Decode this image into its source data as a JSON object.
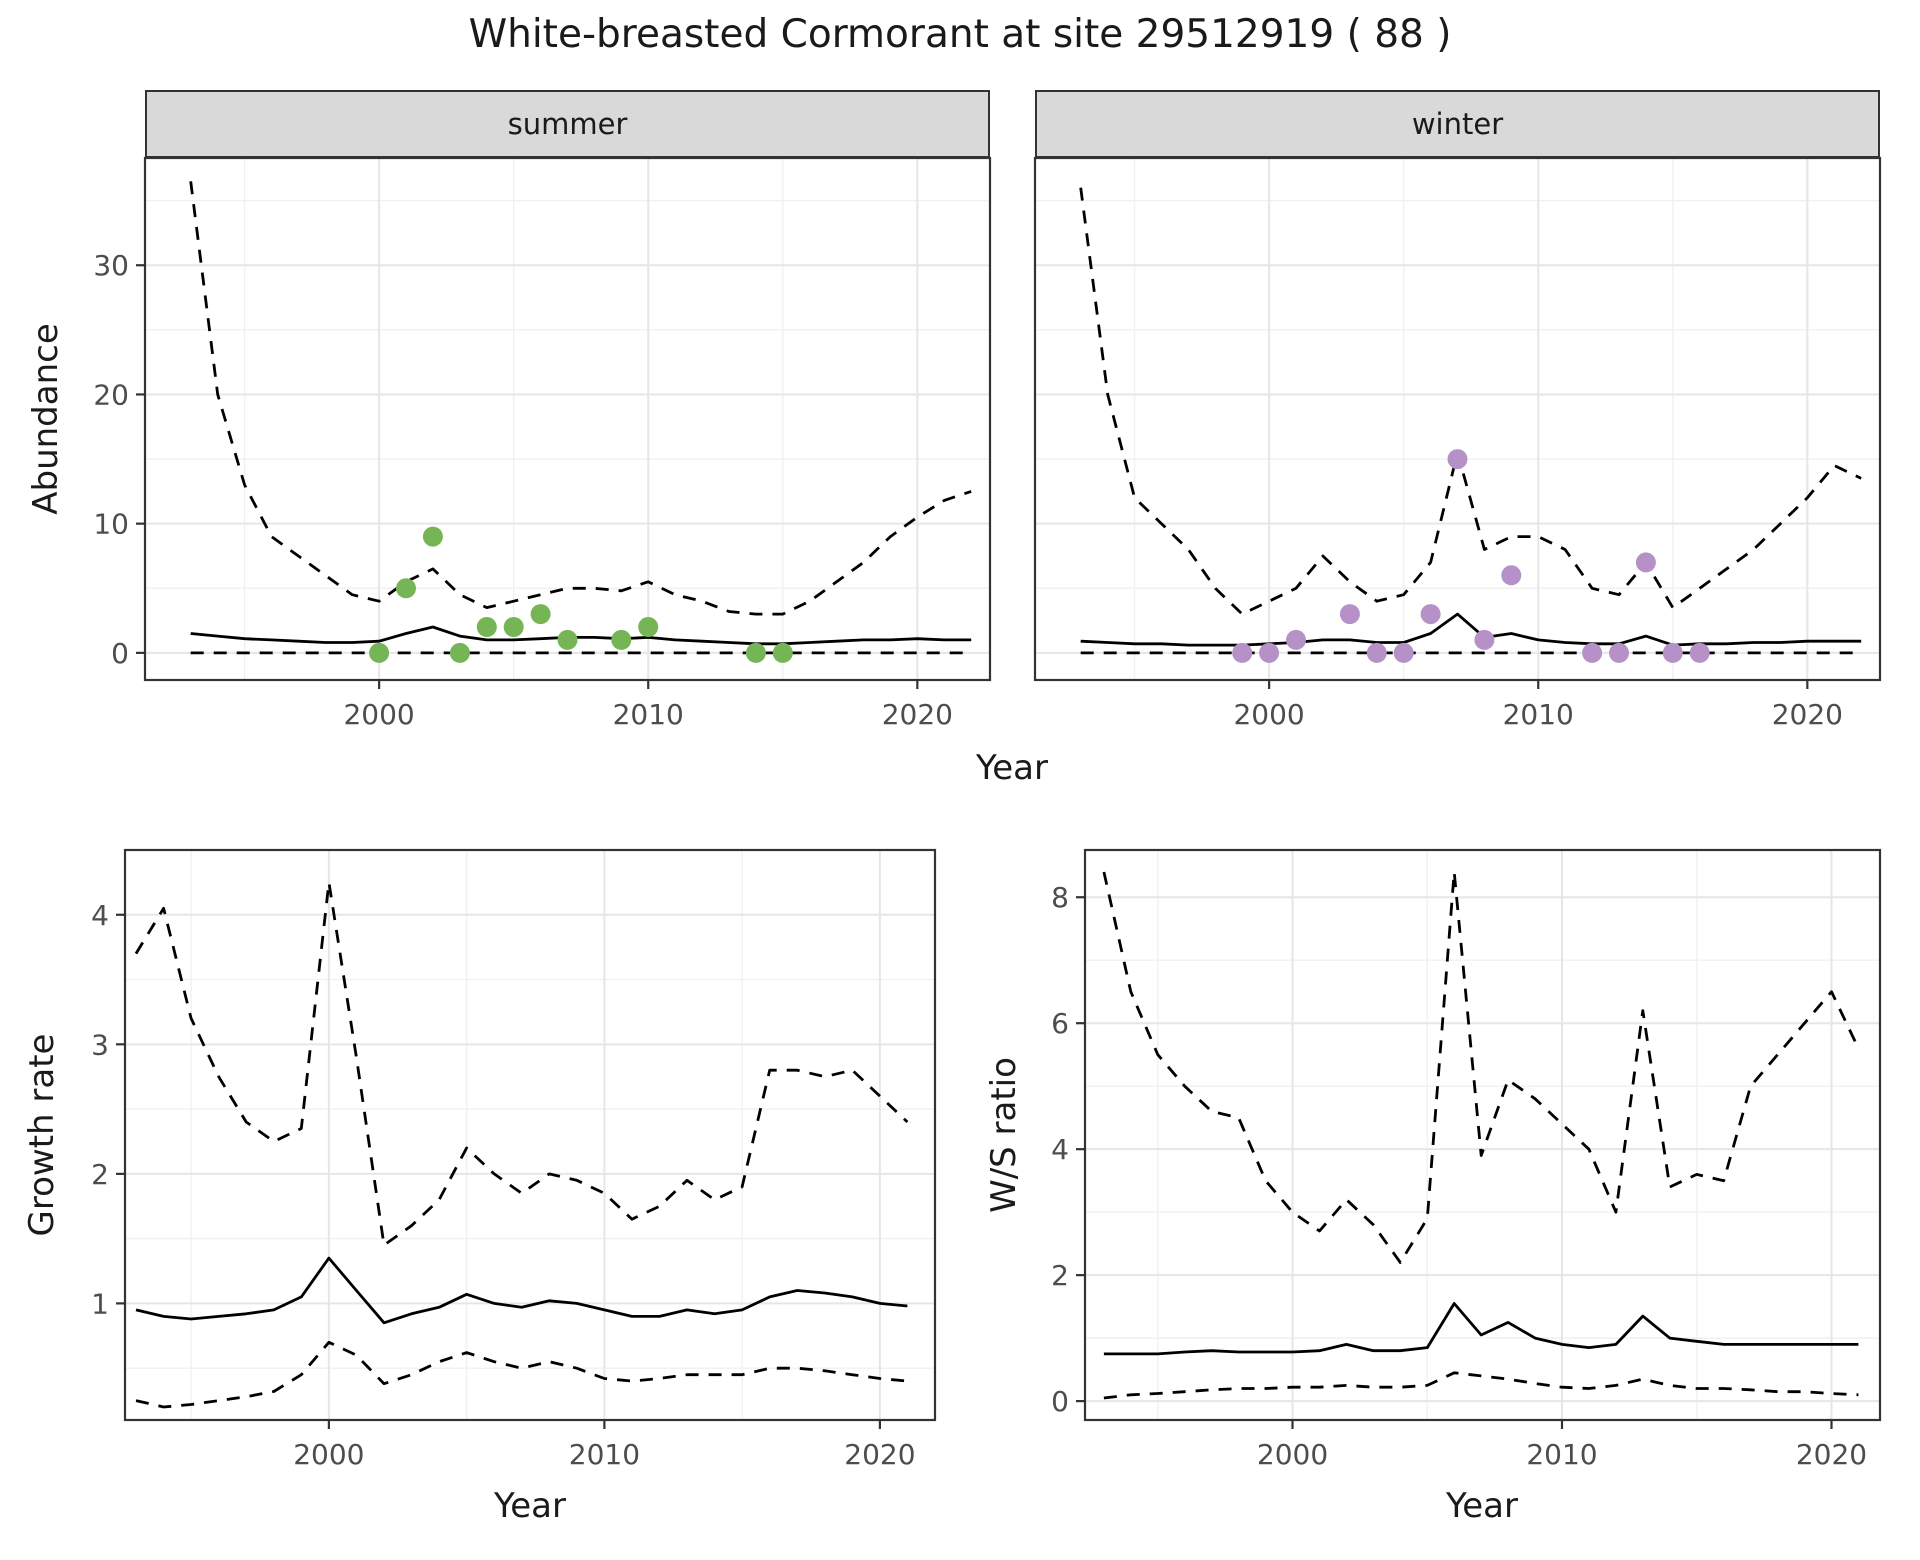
{
  "title": "White-breasted Cormorant at site 29512919 ( 88 )",
  "colors": {
    "summer_points": "#76b556",
    "winter_points": "#b691c8",
    "lines": "#000000",
    "strip_bg": "#d9d9d9",
    "panel_border": "#333333",
    "grid_major": "#e6e6e6",
    "grid_minor": "#f1f1f1",
    "tick_text": "#4d4d4d"
  },
  "chart_data": [
    {
      "id": "abundance-summer",
      "type": "line",
      "facet_label": "summer",
      "ylabel": "Abundance",
      "xlabel": "Year",
      "legend": "none",
      "grid": true,
      "xlim": [
        1991.3,
        2022.7
      ],
      "ylim": [
        -2.1,
        38.3
      ],
      "xticks": [
        2000,
        2010,
        2020
      ],
      "yticks": [
        0,
        10,
        20,
        30
      ],
      "x": [
        1993,
        1994,
        1995,
        1996,
        1997,
        1998,
        1999,
        2000,
        2001,
        2002,
        2003,
        2004,
        2005,
        2006,
        2007,
        2008,
        2009,
        2010,
        2011,
        2012,
        2013,
        2014,
        2015,
        2016,
        2017,
        2018,
        2019,
        2020,
        2021,
        2022
      ],
      "series": [
        {
          "name": "upper_ci",
          "style": "dashed",
          "values": [
            36.5,
            20,
            13,
            9,
            7.5,
            6,
            4.5,
            4,
            5.5,
            6.5,
            4.5,
            3.5,
            4,
            4.5,
            5,
            5,
            4.8,
            5.5,
            4.5,
            4,
            3.2,
            3,
            3,
            4,
            5.5,
            7,
            9,
            10.5,
            11.8,
            12.5
          ]
        },
        {
          "name": "median",
          "style": "solid",
          "values": [
            1.5,
            1.3,
            1.1,
            1.0,
            0.9,
            0.8,
            0.8,
            0.9,
            1.5,
            2.0,
            1.3,
            1.0,
            1.0,
            1.1,
            1.2,
            1.2,
            1.1,
            1.2,
            1.0,
            0.9,
            0.8,
            0.7,
            0.7,
            0.8,
            0.9,
            1.0,
            1.0,
            1.1,
            1.0,
            1.0
          ]
        },
        {
          "name": "lower_ci",
          "style": "dashed",
          "values": [
            0,
            0,
            0,
            0,
            0,
            0,
            0,
            0,
            0,
            0,
            0,
            0,
            0,
            0,
            0,
            0,
            0,
            0,
            0,
            0,
            0,
            0,
            0,
            0,
            0,
            0,
            0,
            0,
            0,
            0
          ]
        }
      ],
      "points": {
        "color": "#76b556",
        "xy": [
          [
            2000,
            0
          ],
          [
            2001,
            5
          ],
          [
            2002,
            9
          ],
          [
            2003,
            0
          ],
          [
            2004,
            2
          ],
          [
            2005,
            2
          ],
          [
            2006,
            3
          ],
          [
            2007,
            1
          ],
          [
            2009,
            1
          ],
          [
            2010,
            2
          ],
          [
            2014,
            0
          ],
          [
            2015,
            0
          ]
        ]
      }
    },
    {
      "id": "abundance-winter",
      "type": "line",
      "facet_label": "winter",
      "ylabel": "Abundance",
      "xlabel": "Year",
      "legend": "none",
      "grid": true,
      "xlim": [
        1991.3,
        2022.7
      ],
      "ylim": [
        -2.1,
        38.3
      ],
      "xticks": [
        2000,
        2010,
        2020
      ],
      "yticks": [
        0,
        10,
        20,
        30
      ],
      "x": [
        1993,
        1994,
        1995,
        1996,
        1997,
        1998,
        1999,
        2000,
        2001,
        2002,
        2003,
        2004,
        2005,
        2006,
        2007,
        2008,
        2009,
        2010,
        2011,
        2012,
        2013,
        2014,
        2015,
        2016,
        2017,
        2018,
        2019,
        2020,
        2021,
        2022
      ],
      "series": [
        {
          "name": "upper_ci",
          "style": "dashed",
          "values": [
            36,
            20,
            12,
            10,
            8,
            5,
            3,
            4,
            5,
            7.5,
            5.5,
            4,
            4.5,
            7,
            15.5,
            8,
            9,
            9,
            8,
            5,
            4.5,
            7,
            3.5,
            5,
            6.5,
            8,
            10,
            12,
            14.5,
            13.5
          ]
        },
        {
          "name": "median",
          "style": "solid",
          "values": [
            0.9,
            0.8,
            0.7,
            0.7,
            0.6,
            0.6,
            0.6,
            0.7,
            0.8,
            1.0,
            1.0,
            0.8,
            0.8,
            1.5,
            3.0,
            1.2,
            1.5,
            1.0,
            0.8,
            0.7,
            0.7,
            1.3,
            0.6,
            0.7,
            0.7,
            0.8,
            0.8,
            0.9,
            0.9,
            0.9
          ]
        },
        {
          "name": "lower_ci",
          "style": "dashed",
          "values": [
            0,
            0,
            0,
            0,
            0,
            0,
            0,
            0,
            0,
            0,
            0,
            0,
            0,
            0,
            0,
            0,
            0,
            0,
            0,
            0,
            0,
            0,
            0,
            0,
            0,
            0,
            0,
            0,
            0,
            0
          ]
        }
      ],
      "points": {
        "color": "#b691c8",
        "xy": [
          [
            1999,
            0
          ],
          [
            2000,
            0
          ],
          [
            2001,
            1
          ],
          [
            2003,
            3
          ],
          [
            2004,
            0
          ],
          [
            2005,
            0
          ],
          [
            2006,
            3
          ],
          [
            2007,
            15
          ],
          [
            2008,
            1
          ],
          [
            2009,
            6
          ],
          [
            2012,
            0
          ],
          [
            2013,
            0
          ],
          [
            2014,
            7
          ],
          [
            2015,
            0
          ],
          [
            2016,
            0
          ]
        ]
      }
    },
    {
      "id": "growth-rate",
      "type": "line",
      "facet_label": "",
      "ylabel": "Growth rate",
      "xlabel": "Year",
      "legend": "none",
      "grid": true,
      "xlim": [
        1992.6,
        2022.0
      ],
      "ylim": [
        0.1,
        4.5
      ],
      "xticks": [
        2000,
        2010,
        2020
      ],
      "yticks": [
        1,
        2,
        3,
        4
      ],
      "x": [
        1993,
        1994,
        1995,
        1996,
        1997,
        1998,
        1999,
        2000,
        2001,
        2002,
        2003,
        2004,
        2005,
        2006,
        2007,
        2008,
        2009,
        2010,
        2011,
        2012,
        2013,
        2014,
        2015,
        2016,
        2017,
        2018,
        2019,
        2020,
        2021
      ],
      "series": [
        {
          "name": "upper_ci",
          "style": "dashed",
          "values": [
            3.7,
            4.05,
            3.2,
            2.75,
            2.4,
            2.25,
            2.35,
            4.25,
            2.9,
            1.45,
            1.6,
            1.8,
            2.2,
            2.0,
            1.85,
            2.0,
            1.95,
            1.85,
            1.65,
            1.75,
            1.95,
            1.8,
            1.9,
            2.8,
            2.8,
            2.75,
            2.8,
            2.6,
            2.4
          ]
        },
        {
          "name": "median",
          "style": "solid",
          "values": [
            0.95,
            0.9,
            0.88,
            0.9,
            0.92,
            0.95,
            1.05,
            1.35,
            1.1,
            0.85,
            0.92,
            0.97,
            1.07,
            1.0,
            0.97,
            1.02,
            1.0,
            0.95,
            0.9,
            0.9,
            0.95,
            0.92,
            0.95,
            1.05,
            1.1,
            1.08,
            1.05,
            1.0,
            0.98
          ]
        },
        {
          "name": "lower_ci",
          "style": "dashed",
          "values": [
            0.25,
            0.2,
            0.22,
            0.25,
            0.28,
            0.32,
            0.45,
            0.7,
            0.6,
            0.38,
            0.45,
            0.55,
            0.62,
            0.55,
            0.5,
            0.55,
            0.5,
            0.42,
            0.4,
            0.42,
            0.45,
            0.45,
            0.45,
            0.5,
            0.5,
            0.48,
            0.45,
            0.42,
            0.4
          ]
        }
      ],
      "points": null
    },
    {
      "id": "ws-ratio",
      "type": "line",
      "facet_label": "",
      "ylabel": "W/S ratio",
      "xlabel": "Year",
      "legend": "none",
      "grid": true,
      "xlim": [
        1992.3,
        2021.8
      ],
      "ylim": [
        -0.3,
        8.75
      ],
      "xticks": [
        2000,
        2010,
        2020
      ],
      "yticks": [
        0,
        2,
        4,
        6,
        8
      ],
      "x": [
        1993,
        1994,
        1995,
        1996,
        1997,
        1998,
        1999,
        2000,
        2001,
        2002,
        2003,
        2004,
        2005,
        2006,
        2007,
        2008,
        2009,
        2010,
        2011,
        2012,
        2013,
        2014,
        2015,
        2016,
        2017,
        2018,
        2019,
        2020,
        2021
      ],
      "series": [
        {
          "name": "upper_ci",
          "style": "dashed",
          "values": [
            8.4,
            6.5,
            5.5,
            5.0,
            4.6,
            4.5,
            3.5,
            3.0,
            2.7,
            3.2,
            2.8,
            2.2,
            2.9,
            8.4,
            3.9,
            5.1,
            4.8,
            4.4,
            4.0,
            3.0,
            6.2,
            3.4,
            3.6,
            3.5,
            5.0,
            5.5,
            6.0,
            6.5,
            5.6
          ]
        },
        {
          "name": "median",
          "style": "solid",
          "values": [
            0.75,
            0.75,
            0.75,
            0.78,
            0.8,
            0.78,
            0.78,
            0.78,
            0.8,
            0.9,
            0.8,
            0.8,
            0.85,
            1.55,
            1.05,
            1.25,
            1.0,
            0.9,
            0.85,
            0.9,
            1.35,
            1.0,
            0.95,
            0.9,
            0.9,
            0.9,
            0.9,
            0.9,
            0.9
          ]
        },
        {
          "name": "lower_ci",
          "style": "dashed",
          "values": [
            0.05,
            0.1,
            0.12,
            0.15,
            0.18,
            0.2,
            0.2,
            0.22,
            0.22,
            0.25,
            0.22,
            0.22,
            0.25,
            0.45,
            0.4,
            0.35,
            0.28,
            0.22,
            0.2,
            0.25,
            0.35,
            0.25,
            0.2,
            0.2,
            0.18,
            0.15,
            0.15,
            0.12,
            0.1
          ]
        }
      ],
      "points": null
    }
  ]
}
